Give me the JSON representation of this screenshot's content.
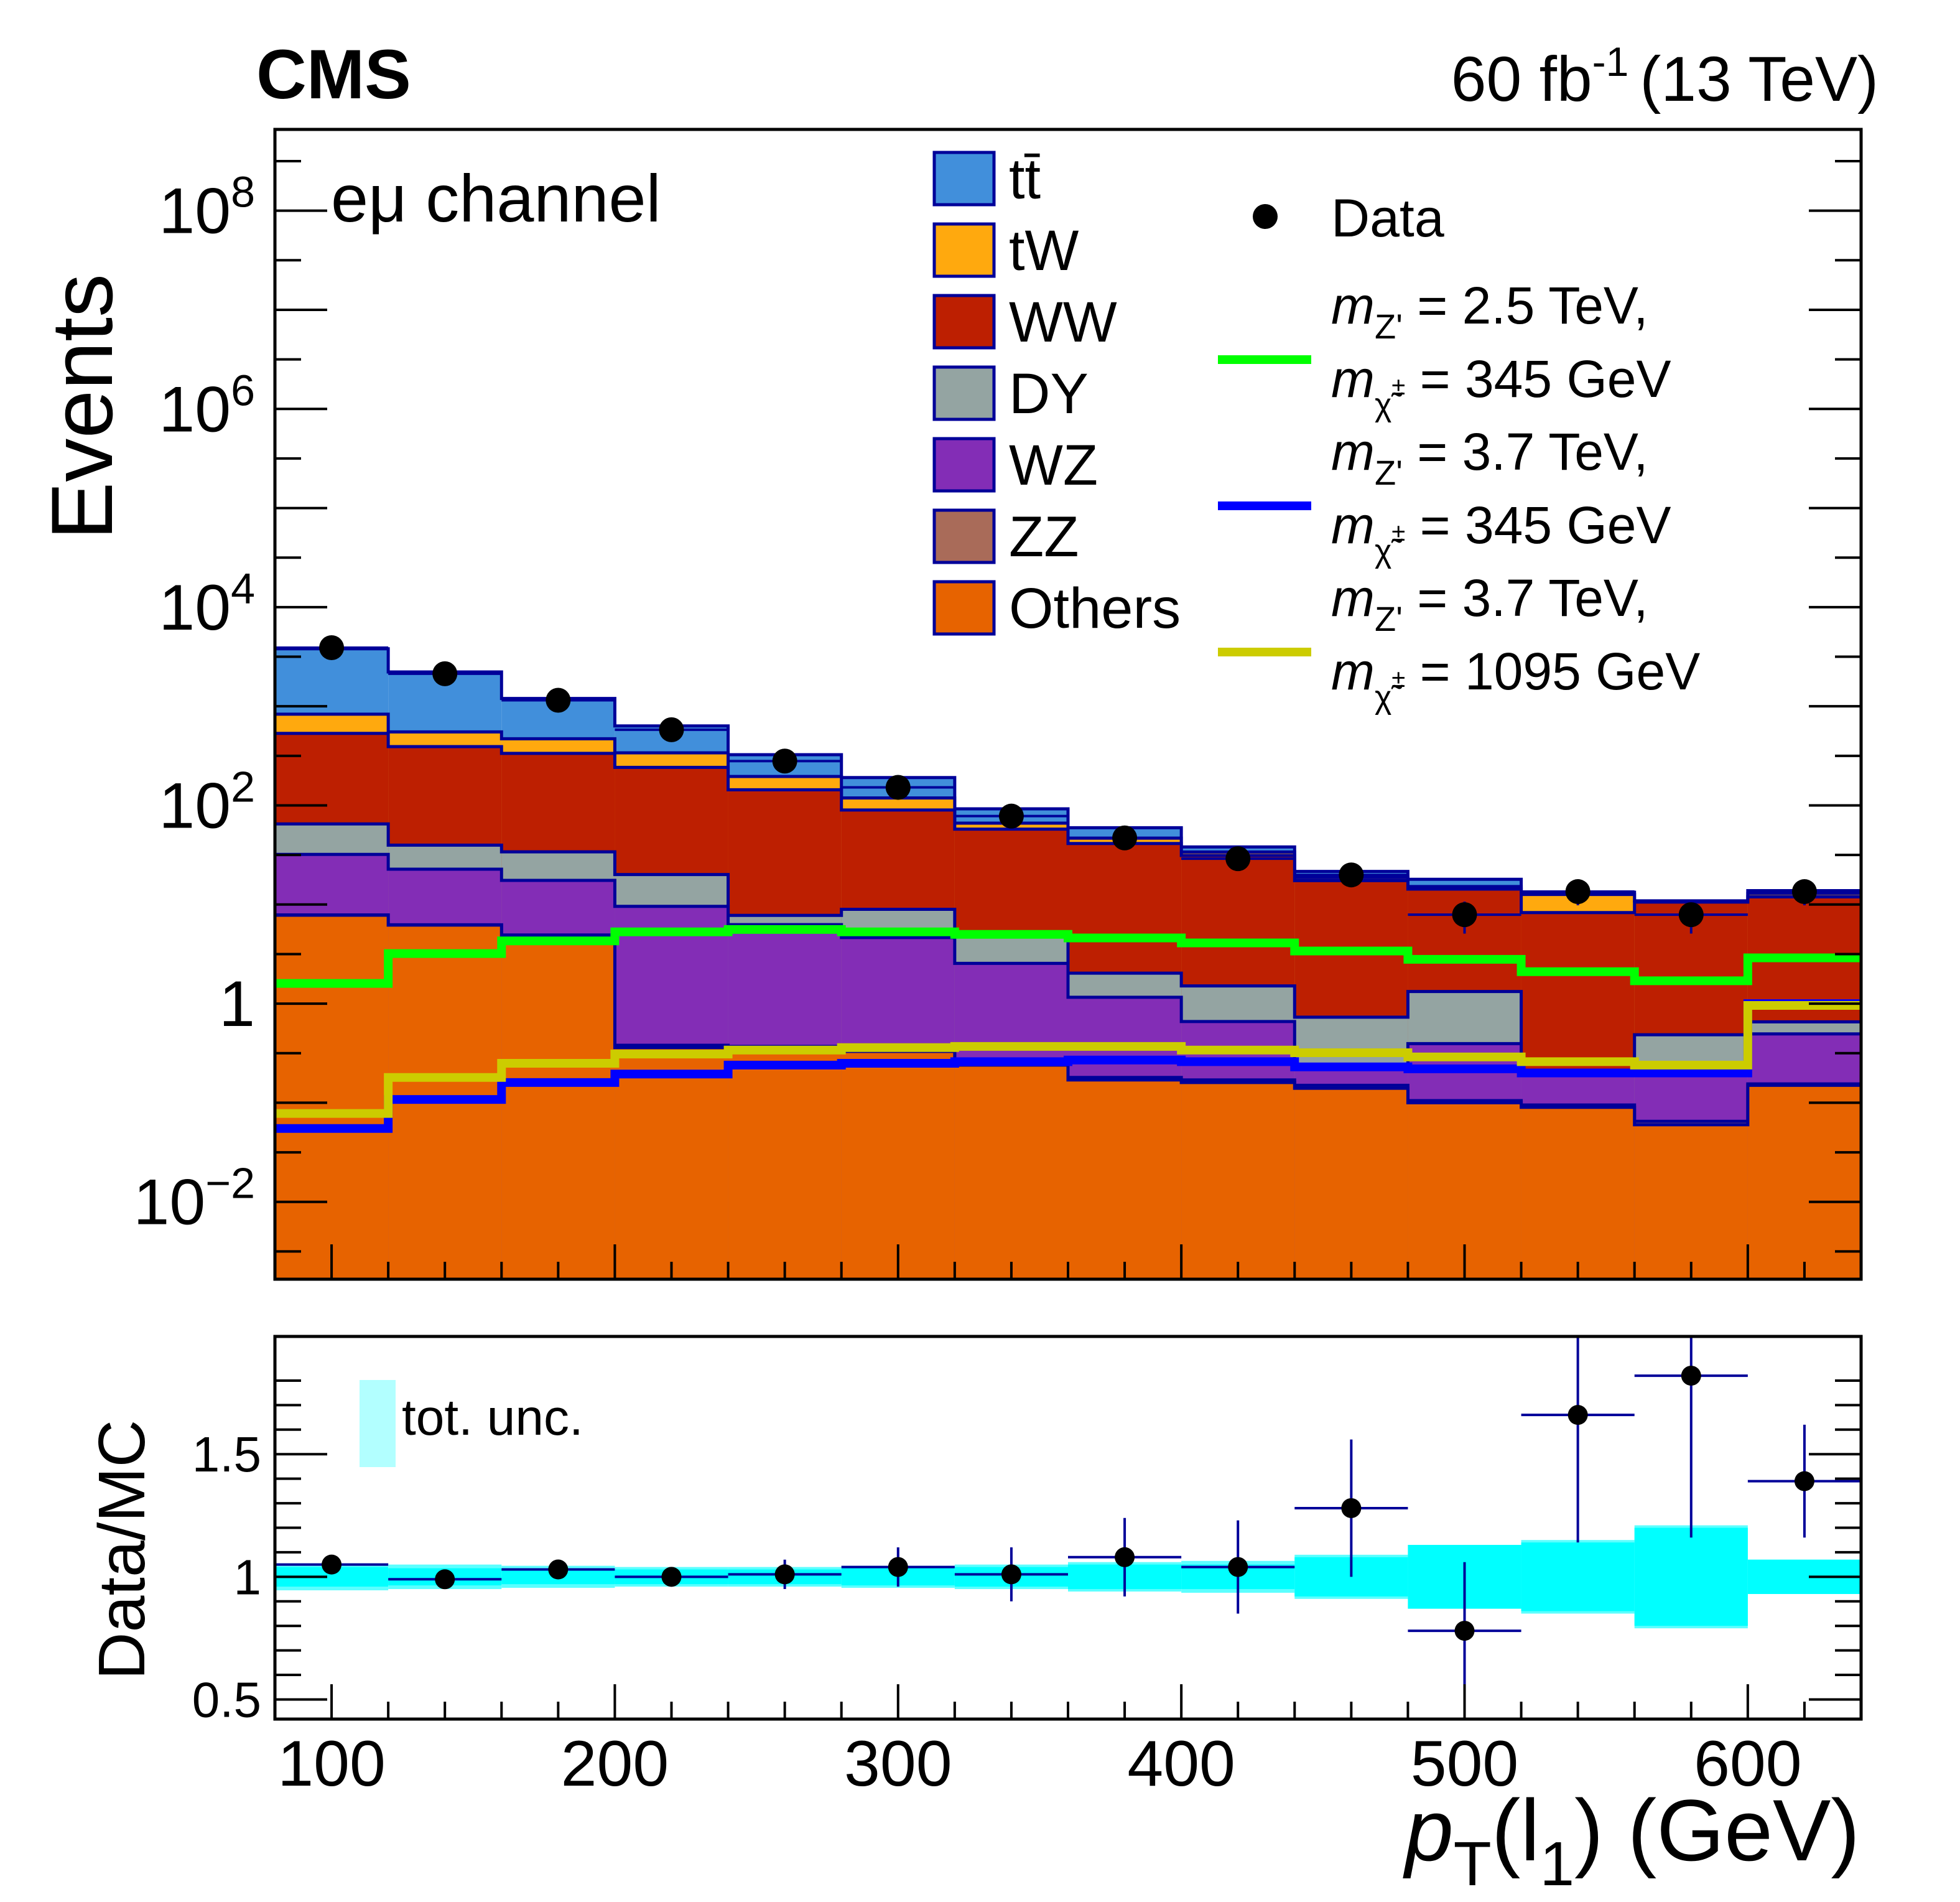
{
  "chart_data": {
    "type": "bar",
    "subtype": "stacked-histogram-with-ratio",
    "experiment_label": "CMS",
    "lumi_label": {
      "value": "60 fb",
      "superscript": "-1",
      "suffix": "(13 TeV)"
    },
    "channel_label": "eμ channel",
    "xlabel": {
      "main": "p",
      "sub": "T",
      "rest_open": "(l",
      "rest_sub": "1",
      "rest_close": ") (GeV)"
    },
    "ylabel": "Events",
    "ratio_ylabel": "Data/MC",
    "x_range": [
      80,
      640
    ],
    "x_ticks": [
      100,
      200,
      300,
      400,
      500,
      600
    ],
    "bin_edges": [
      80,
      120,
      160,
      200,
      240,
      280,
      320,
      360,
      400,
      440,
      480,
      520,
      560,
      600,
      640
    ],
    "y_scale": "log",
    "y_range_log10": [
      -2.78,
      8.82
    ],
    "y_ticks": [
      {
        "exp": 8,
        "base": "10",
        "sup": "8"
      },
      {
        "exp": 6,
        "base": "10",
        "sup": "6"
      },
      {
        "exp": 4,
        "base": "10",
        "sup": "4"
      },
      {
        "exp": 2,
        "base": "10",
        "sup": "2"
      },
      {
        "exp": 0,
        "base": "1",
        "sup": ""
      },
      {
        "exp": -2,
        "base": "10",
        "sup": "−2"
      }
    ],
    "stack_order_bottom_to_top": [
      "Others",
      "ZZ",
      "WZ",
      "DY",
      "WW",
      "tW",
      "tt"
    ],
    "backgrounds": [
      {
        "name": "tt",
        "label": "tt̄",
        "color": "#418fdb",
        "values": [
          2970,
          1670,
          730,
          295,
          129,
          72,
          26.2,
          12.8,
          4.2,
          2.8,
          2.8,
          0.7,
          0.06,
          0.86
        ]
      },
      {
        "name": "tW",
        "label": "tW",
        "color": "#ffa90e",
        "values": [
          300,
          160,
          135,
          97,
          52,
          29,
          8.6,
          5.5,
          2.7,
          1.32,
          0.86,
          4.33,
          0.26,
          0.98
        ]
      },
      {
        "name": "WW",
        "label": "WW",
        "color": "#bd1f01",
        "values": [
          468,
          352,
          301,
          222,
          136,
          81,
          52.6,
          39.2,
          29.7,
          16.7,
          13.0,
          8.1,
          10.1,
          11.3
        ]
      },
      {
        "name": "DY",
        "label": "DY",
        "color": "#94a4a2",
        "values": [
          33,
          17,
          16.5,
          10.5,
          1.5,
          4.3,
          2.45,
          0.87,
          0.85,
          0.5,
          0.93,
          0.0,
          0.29,
          0.16
        ]
      },
      {
        "name": "WZ",
        "label": "WZ",
        "color": "#832db6",
        "values": [
          24.2,
          16.5,
          12.6,
          9.2,
          5.9,
          4.3,
          2.3,
          0.98,
          0.49,
          0.08,
          0.29,
          0.1,
          0.13,
          0.34
        ]
      },
      {
        "name": "ZZ",
        "label": "ZZ",
        "color": "#a96b59",
        "values": [
          0.05,
          0.04,
          0.03,
          0.02,
          0.02,
          0.01,
          0.01,
          0.01,
          0.01,
          0.01,
          0.005,
          0.005,
          0.005,
          0.005
        ]
      },
      {
        "name": "Others",
        "label": "Others",
        "color": "#e76300",
        "values": [
          7.8,
          6.2,
          4.9,
          0.36,
          0.35,
          0.33,
          0.24,
          0.17,
          0.16,
          0.14,
          0.1,
          0.09,
          0.06,
          0.15
        ]
      }
    ],
    "data": {
      "label": "Data",
      "color": "#000000",
      "values": [
        3900,
        2130,
        1150,
        580,
        280,
        152,
        78,
        47,
        29,
        19.9,
        7.9,
        13.5,
        7.9,
        13.5
      ],
      "ratio": [
        1.05,
        0.99,
        1.03,
        1.0,
        1.01,
        1.04,
        1.01,
        1.08,
        1.04,
        1.28,
        0.78,
        1.66,
        1.82,
        1.39
      ],
      "ratio_err": [
        0.02,
        0.02,
        0.03,
        0.04,
        0.06,
        0.08,
        0.11,
        0.16,
        0.19,
        0.28,
        0.28,
        0.52,
        0.66,
        0.23
      ]
    },
    "signals": [
      {
        "name": "signal-2p5tev-345gev",
        "label_line1": {
          "m": "m",
          "sub": "Z'",
          "text": " = 2.5 TeV,"
        },
        "label_line2": {
          "m": "m",
          "sub": "χ̃",
          "sup": "±",
          "subsub": "1",
          "text": " = 345 GeV"
        },
        "color": "#00ff00",
        "values": [
          1.6,
          3.2,
          4.3,
          5.3,
          5.6,
          5.3,
          5.0,
          4.6,
          4.1,
          3.4,
          2.8,
          2.1,
          1.7,
          2.9
        ]
      },
      {
        "name": "signal-3p7tev-345gev",
        "label_line1": {
          "m": "m",
          "sub": "Z'",
          "text": " = 3.7 TeV,"
        },
        "label_line2": {
          "m": "m",
          "sub": "χ̃",
          "sup": "±",
          "subsub": "1",
          "text": " = 345 GeV"
        },
        "color": "#0000ff",
        "values": [
          0.055,
          0.108,
          0.16,
          0.195,
          0.24,
          0.25,
          0.26,
          0.27,
          0.26,
          0.23,
          0.22,
          0.2,
          0.2,
          1.0
        ]
      },
      {
        "name": "signal-3p7tev-1095gev",
        "label_line1": {
          "m": "m",
          "sub": "Z'",
          "text": " = 3.7 TeV,"
        },
        "label_line2": {
          "m": "m",
          "sub": "χ̃",
          "sup": "±",
          "subsub": "1",
          "text": " = 1095 GeV"
        },
        "color": "#cccc00",
        "values": [
          0.078,
          0.18,
          0.25,
          0.31,
          0.34,
          0.36,
          0.37,
          0.37,
          0.34,
          0.32,
          0.29,
          0.26,
          0.24,
          0.96
        ]
      }
    ],
    "ratio_pad": {
      "y_range": [
        0.42,
        1.98
      ],
      "y_ticks": [
        "0.5",
        "1",
        "1.5"
      ],
      "y_tick_values": [
        0.5,
        1.0,
        1.5
      ],
      "uncertainty_label": "tot. unc.",
      "uncertainty_color": "#00ffff",
      "uncertainty_legend_color": "#b2ffff",
      "unc_inner": [
        0.04,
        0.035,
        0.03,
        0.03,
        0.03,
        0.035,
        0.04,
        0.05,
        0.05,
        0.08,
        0.13,
        0.14,
        0.2,
        0.07
      ],
      "unc_outer": [
        0.055,
        0.05,
        0.045,
        0.04,
        0.04,
        0.045,
        0.05,
        0.06,
        0.065,
        0.09,
        0.13,
        0.15,
        0.21,
        0.07
      ]
    },
    "legend": {
      "placement": "top-center-right",
      "data_label": "Data"
    },
    "grid": false
  }
}
